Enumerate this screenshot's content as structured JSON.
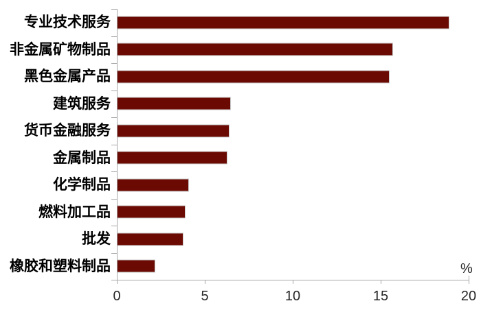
{
  "chart_data": {
    "type": "bar",
    "orientation": "horizontal",
    "title": "",
    "xlabel": "%",
    "ylabel": "",
    "xlim": [
      0,
      20
    ],
    "x_ticks": [
      0,
      5,
      10,
      15,
      20
    ],
    "grid": false,
    "legend_position": "none",
    "categories": [
      "专业技术服务",
      "非金属矿物制品",
      "黑色金属产品",
      "建筑服务",
      "货币金融服务",
      "金属制品",
      "化学制品",
      "燃料加工品",
      "批发",
      "橡胶和塑料制品"
    ],
    "values": [
      18.9,
      15.7,
      15.5,
      6.5,
      6.4,
      6.3,
      4.1,
      3.9,
      3.8,
      2.2
    ],
    "bar_color": "#6b0a02",
    "bar_border_color": "#c9c9c9",
    "axis_color": "#a6a6a6",
    "label_color": "#000000",
    "tick_label_color": "#262626"
  }
}
